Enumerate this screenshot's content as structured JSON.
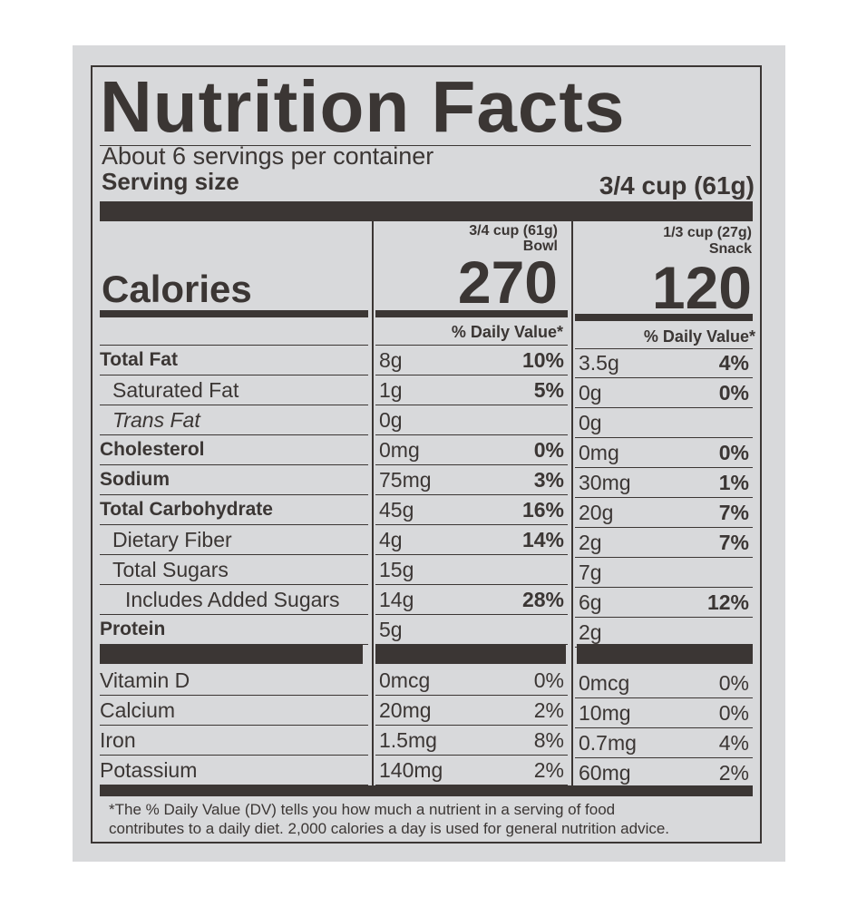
{
  "title": "Nutrition Facts",
  "servings": "About 6 servings per container",
  "serving_size": {
    "label": "Serving size",
    "value": "3/4 cup (61g)"
  },
  "calories_label": "Calories",
  "columns": [
    {
      "size": "3/4 cup (61g)",
      "name": "Bowl",
      "calories": "270",
      "dv_header": "% Daily Value*"
    },
    {
      "size": "1/3 cup (27g)",
      "name": "Snack",
      "calories": "120",
      "dv_header": "% Daily Value*"
    }
  ],
  "nutrients": [
    {
      "name": "Total Fat",
      "bowl": [
        "8g",
        "10%"
      ],
      "snack": [
        "3.5g",
        "4%"
      ]
    },
    {
      "name": "Saturated Fat",
      "bowl": [
        "1g",
        "5%"
      ],
      "snack": [
        "0g",
        "0%"
      ]
    },
    {
      "name": "Trans Fat",
      "bowl": [
        "0g"
      ],
      "snack": [
        "0g"
      ]
    },
    {
      "name": "Cholesterol",
      "bowl": [
        "0mg",
        "0%"
      ],
      "snack": [
        "0mg",
        "0%"
      ]
    },
    {
      "name": "Sodium",
      "bowl": [
        "75mg",
        "3%"
      ],
      "snack": [
        "30mg",
        "1%"
      ]
    },
    {
      "name": "Total Carbohydrate",
      "bowl": [
        "45g",
        "16%"
      ],
      "snack": [
        "20g",
        "7%"
      ]
    },
    {
      "name": "Dietary Fiber",
      "bowl": [
        "4g",
        "14%"
      ],
      "snack": [
        "2g",
        "7%"
      ]
    },
    {
      "name": "Total Sugars",
      "bowl": [
        "15g"
      ],
      "snack": [
        "7g"
      ]
    },
    {
      "name": "Includes Added Sugars",
      "bowl": [
        "14g",
        "28%"
      ],
      "snack": [
        "6g",
        "12%"
      ]
    },
    {
      "name": "Protein",
      "bowl": [
        "5g"
      ],
      "snack": [
        "2g"
      ]
    }
  ],
  "vitamins": [
    {
      "name": "Vitamin D",
      "bowl": [
        "0mcg",
        "0%"
      ],
      "snack": [
        "0mcg",
        "0%"
      ]
    },
    {
      "name": "Calcium",
      "bowl": [
        "20mg",
        "2%"
      ],
      "snack": [
        "10mg",
        "0%"
      ]
    },
    {
      "name": "Iron",
      "bowl": [
        "1.5mg",
        "8%"
      ],
      "snack": [
        "0.7mg",
        "4%"
      ]
    },
    {
      "name": "Potassium",
      "bowl": [
        "140mg",
        "2%"
      ],
      "snack": [
        "60mg",
        "2%"
      ]
    }
  ],
  "footnote": [
    "*The % Daily Value (DV) tells you how much a nutrient in a serving of food",
    "contributes to a daily diet. 2,000 calories a day is used for general nutrition advice."
  ]
}
